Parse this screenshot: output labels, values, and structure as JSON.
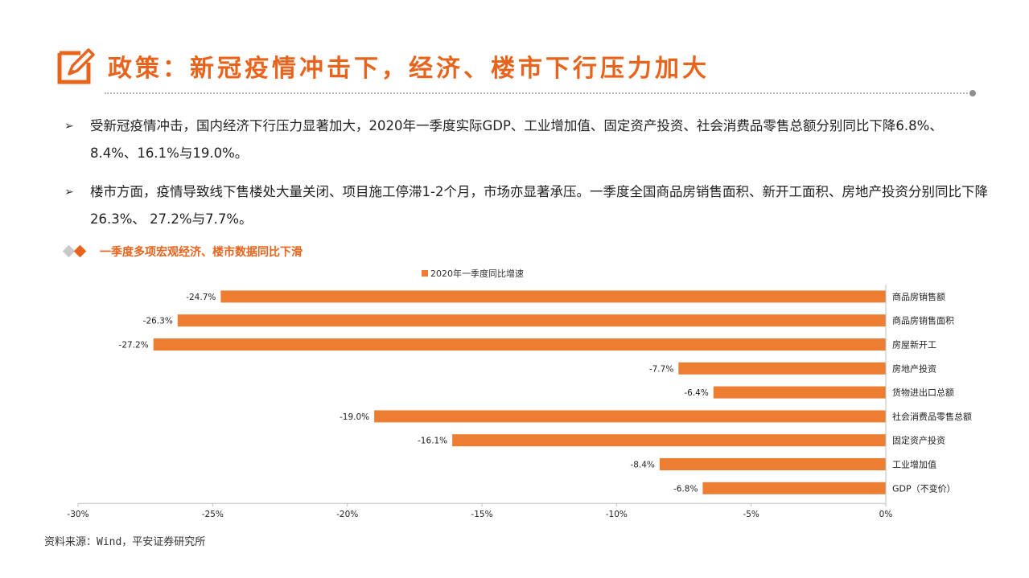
{
  "header": {
    "title": "政策：新冠疫情冲击下，经济、楼市下行压力加大"
  },
  "bullets": [
    {
      "mark": "➢",
      "text": "受新冠疫情冲击，国内经济下行压力显著加大，2020年一季度实际GDP、工业增加值、固定资产投资、社会消费品零售总额分别同比下降6.8%、8.4%、16.1%与19.0%。"
    },
    {
      "mark": "➢",
      "text": "楼市方面，疫情导致线下售楼处大量关闭、项目施工停滞1-2个月，市场亦显著承压。一季度全国商品房销售面积、新开工面积、房地产投资分别同比下降26.3%、 27.2%与7.7%。"
    }
  ],
  "chart_section": {
    "heading": "一季度多项宏观经济、楼市数据同比下滑"
  },
  "chart_data": {
    "type": "bar",
    "orientation": "horizontal",
    "categories": [
      "商品房销售额",
      "商品房销售面积",
      "房屋新开工",
      "房地产投资",
      "货物进出口总额",
      "社会消费品零售总额",
      "固定资产投资",
      "工业增加值",
      "GDP（不变价）"
    ],
    "series": [
      {
        "name": "2020年一季度同比增速",
        "values": [
          -24.7,
          -26.3,
          -27.2,
          -7.7,
          -6.4,
          -19.0,
          -16.1,
          -8.4,
          -6.8
        ],
        "color": "#ed7d31"
      }
    ],
    "data_labels": [
      "-24.7%",
      "-26.3%",
      "-27.2%",
      "-7.7%",
      "-6.4%",
      "-19.0%",
      "-16.1%",
      "-8.4%",
      "-6.8%"
    ],
    "xlim": [
      -30,
      0
    ],
    "x_ticks": [
      -30,
      -25,
      -20,
      -15,
      -10,
      -5,
      0
    ],
    "x_tick_labels": [
      "-30%",
      "-25%",
      "-20%",
      "-15%",
      "-10%",
      "-5%",
      "0%"
    ],
    "legend_position": "top",
    "grid": false
  },
  "footer": {
    "source": "资料来源：Wind，平安证券研究所"
  }
}
